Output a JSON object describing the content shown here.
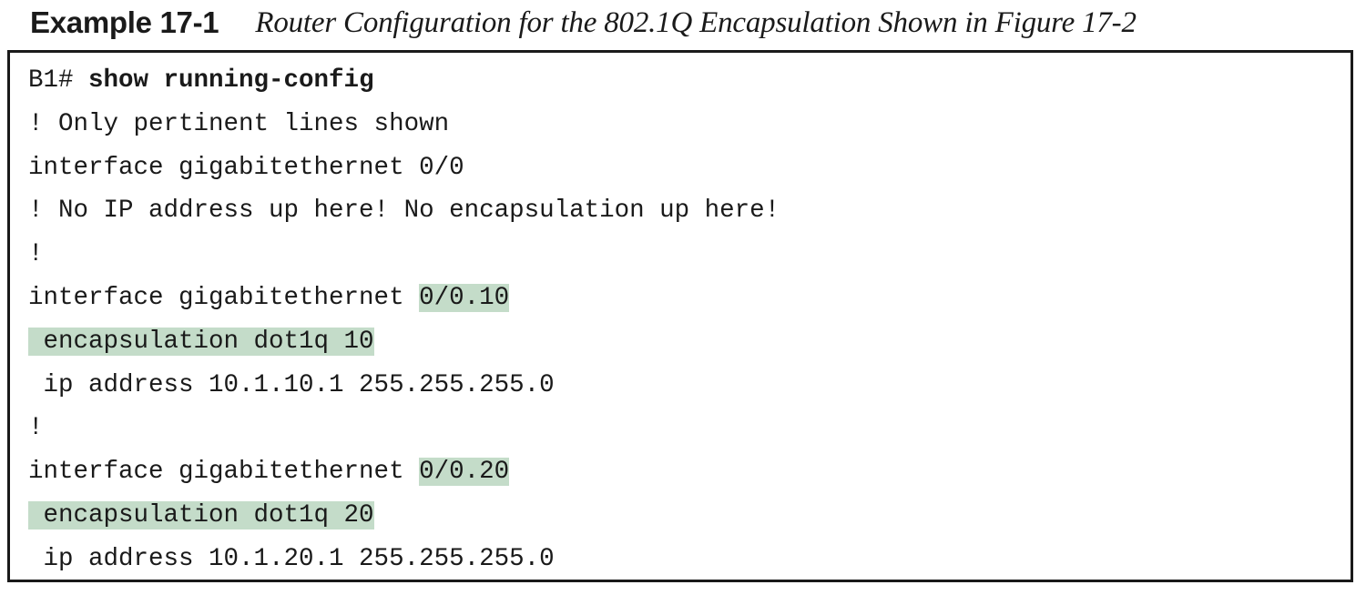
{
  "example": {
    "label": "Example 17-1",
    "caption": "Router Configuration for the 802.1Q Encapsulation Shown in Figure 17-2"
  },
  "config": {
    "line1": {
      "prompt": "B1# ",
      "command": "show running-config"
    },
    "line2": "! Only pertinent lines shown",
    "line3": "interface gigabitethernet 0/0",
    "line4": "! No IP address up here! No encapsulation up here!",
    "line5": "!",
    "line6": {
      "text": "interface gigabitethernet ",
      "highlight": "0/0.10"
    },
    "line7": {
      "highlight": " encapsulation dot1q 10"
    },
    "line8": " ip address 10.1.10.1 255.255.255.0",
    "line9": "!",
    "line10": {
      "text": "interface gigabitethernet ",
      "highlight": "0/0.20"
    },
    "line11": {
      "highlight": " encapsulation dot1q 20"
    },
    "line12": " ip address 10.1.20.1 255.255.255.0"
  },
  "colors": {
    "highlight": "#c4dcc9",
    "text": "#1a1a1a",
    "border": "#1a1a1a"
  }
}
